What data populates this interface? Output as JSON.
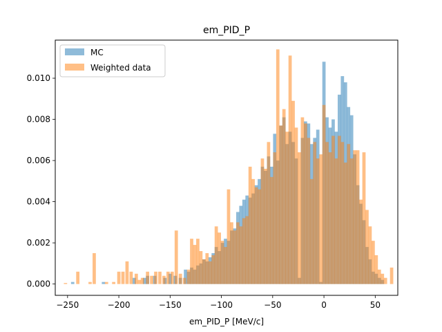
{
  "chart_data": {
    "type": "bar",
    "title": "em_PID_P",
    "xlabel": "em_PID_P [MeV/c]",
    "ylabel": "",
    "xlim": [
      -262,
      72
    ],
    "ylim": [
      -0.00055,
      0.01185
    ],
    "xticks": [
      -250,
      -200,
      -150,
      -100,
      -50,
      0,
      50
    ],
    "xtick_labels": [
      "−250",
      "−200",
      "−150",
      "−100",
      "−50",
      "0",
      "50"
    ],
    "yticks": [
      0.0,
      0.002,
      0.004,
      0.006,
      0.008,
      0.01
    ],
    "ytick_labels": [
      "0.000",
      "0.002",
      "0.004",
      "0.006",
      "0.008",
      "0.010"
    ],
    "bin_width": 3.2,
    "legend_position": "upper-left",
    "series": [
      {
        "name": "MC",
        "color": "#1f77b4",
        "alpha": 0.5,
        "bins": [
          [
            -245,
            0.0001
          ],
          [
            -215,
            0.0001
          ],
          [
            -185,
            0.0003
          ],
          [
            -175,
            0.0003
          ],
          [
            -172,
            0.0004
          ],
          [
            -165,
            0.0004
          ],
          [
            -155,
            0.0003
          ],
          [
            -150,
            0.0005
          ],
          [
            -145,
            0.0004
          ],
          [
            -140,
            0.0003
          ],
          [
            -135,
            0.0007
          ],
          [
            -132,
            0.0006
          ],
          [
            -129,
            0.0008
          ],
          [
            -126,
            0.0007
          ],
          [
            -123,
            0.0009
          ],
          [
            -120,
            0.001
          ],
          [
            -117,
            0.0012
          ],
          [
            -114,
            0.0011
          ],
          [
            -111,
            0.0013
          ],
          [
            -108,
            0.0015
          ],
          [
            -105,
            0.0018
          ],
          [
            -102,
            0.0016
          ],
          [
            -99,
            0.002
          ],
          [
            -96,
            0.0022
          ],
          [
            -93,
            0.0021
          ],
          [
            -90,
            0.0026
          ],
          [
            -87,
            0.0027
          ],
          [
            -84,
            0.0035
          ],
          [
            -81,
            0.0038
          ],
          [
            -78,
            0.0041
          ],
          [
            -75,
            0.0043
          ],
          [
            -72,
            0.0042
          ],
          [
            -69,
            0.0044
          ],
          [
            -66,
            0.0048
          ],
          [
            -63,
            0.0051
          ],
          [
            -60,
            0.0057
          ],
          [
            -57,
            0.0055
          ],
          [
            -54,
            0.0062
          ],
          [
            -51,
            0.0057
          ],
          [
            -48,
            0.0073
          ],
          [
            -45,
            0.006
          ],
          [
            -42,
            0.0077
          ],
          [
            -39,
            0.0081
          ],
          [
            -36,
            0.0068
          ],
          [
            -33,
            0.0074
          ],
          [
            -30,
            0.0069
          ],
          [
            -27,
            0.0061
          ],
          [
            -24,
            0.0003
          ],
          [
            -21,
            0.0071
          ],
          [
            -18,
            0.0079
          ],
          [
            -15,
            0.0078
          ],
          [
            -12,
            0.0068
          ],
          [
            -9,
            0.0071
          ],
          [
            -6,
            0.0075
          ],
          [
            -3,
            0.0001
          ],
          [
            0,
            0.0108
          ],
          [
            3,
            0.0081
          ],
          [
            6,
            0.0076
          ],
          [
            9,
            0.008
          ],
          [
            12,
            0.0074
          ],
          [
            15,
            0.0092
          ],
          [
            18,
            0.0101
          ],
          [
            21,
            0.0098
          ],
          [
            24,
            0.0086
          ],
          [
            27,
            0.0082
          ],
          [
            30,
            0.0063
          ],
          [
            33,
            0.0048
          ],
          [
            36,
            0.0039
          ],
          [
            39,
            0.0031
          ],
          [
            42,
            0.0018
          ],
          [
            45,
            0.0012
          ],
          [
            48,
            0.0006
          ],
          [
            51,
            0.0005
          ],
          [
            54,
            0.0003
          ],
          [
            57,
            0.0002
          ]
        ]
      },
      {
        "name": "Weighted data",
        "color": "#ff7f0e",
        "alpha": 0.5,
        "bins": [
          [
            -252,
            5e-05
          ],
          [
            -240,
            0.0006
          ],
          [
            -228,
            0.0001
          ],
          [
            -224,
            0.0015
          ],
          [
            -212,
            0.0001
          ],
          [
            -205,
            0.0001
          ],
          [
            -200,
            0.0006
          ],
          [
            -196,
            0.0006
          ],
          [
            -192,
            0.0011
          ],
          [
            -188,
            0.0006
          ],
          [
            -183,
            0.0005
          ],
          [
            -180,
            0.0002
          ],
          [
            -177,
            0.0003
          ],
          [
            -172,
            0.0006
          ],
          [
            -168,
            0.0004
          ],
          [
            -164,
            0.0006
          ],
          [
            -160,
            0.0006
          ],
          [
            -156,
            0.0004
          ],
          [
            -152,
            0.0006
          ],
          [
            -148,
            0.0006
          ],
          [
            -144,
            0.0026
          ],
          [
            -140,
            0.0005
          ],
          [
            -136,
            0.0003
          ],
          [
            -132,
            0.0007
          ],
          [
            -129,
            0.0022
          ],
          [
            -126,
            0.0019
          ],
          [
            -123,
            0.0022
          ],
          [
            -120,
            0.0016
          ],
          [
            -117,
            0.0012
          ],
          [
            -114,
            0.0015
          ],
          [
            -111,
            0.0011
          ],
          [
            -108,
            0.0014
          ],
          [
            -105,
            0.0028
          ],
          [
            -102,
            0.0025
          ],
          [
            -99,
            0.0021
          ],
          [
            -96,
            0.0018
          ],
          [
            -93,
            0.0046
          ],
          [
            -90,
            0.003
          ],
          [
            -87,
            0.0026
          ],
          [
            -84,
            0.003
          ],
          [
            -81,
            0.0028
          ],
          [
            -78,
            0.0032
          ],
          [
            -75,
            0.0033
          ],
          [
            -72,
            0.0057
          ],
          [
            -69,
            0.0051
          ],
          [
            -66,
            0.0047
          ],
          [
            -63,
            0.0046
          ],
          [
            -60,
            0.0061
          ],
          [
            -57,
            0.0056
          ],
          [
            -54,
            0.0069
          ],
          [
            -51,
            0.0052
          ],
          [
            -48,
            0.0064
          ],
          [
            -45,
            0.0114
          ],
          [
            -42,
            0.0077
          ],
          [
            -39,
            0.0085
          ],
          [
            -36,
            0.0074
          ],
          [
            -33,
            0.0111
          ],
          [
            -30,
            0.0089
          ],
          [
            -27,
            0.0076
          ],
          [
            -24,
            0.0064
          ],
          [
            -21,
            0.0081
          ],
          [
            -18,
            0.0078
          ],
          [
            -15,
            0.0071
          ],
          [
            -12,
            0.0051
          ],
          [
            -9,
            0.0069
          ],
          [
            -6,
            0.0061
          ],
          [
            -3,
            0.0063
          ],
          [
            0,
            0.0087
          ],
          [
            3,
            0.0069
          ],
          [
            6,
            0.0064
          ],
          [
            9,
            0.0072
          ],
          [
            12,
            0.0061
          ],
          [
            15,
            0.0072
          ],
          [
            18,
            0.0069
          ],
          [
            21,
            0.0059
          ],
          [
            24,
            0.0068
          ],
          [
            27,
            0.0061
          ],
          [
            30,
            0.0065
          ],
          [
            33,
            0.0065
          ],
          [
            36,
            0.0041
          ],
          [
            39,
            0.0064
          ],
          [
            42,
            0.0036
          ],
          [
            45,
            0.0028
          ],
          [
            48,
            0.0021
          ],
          [
            51,
            0.0014
          ],
          [
            54,
            0.0007
          ],
          [
            57,
            0.0005
          ],
          [
            60,
            0.0003
          ],
          [
            66,
            0.0008
          ]
        ]
      }
    ]
  }
}
